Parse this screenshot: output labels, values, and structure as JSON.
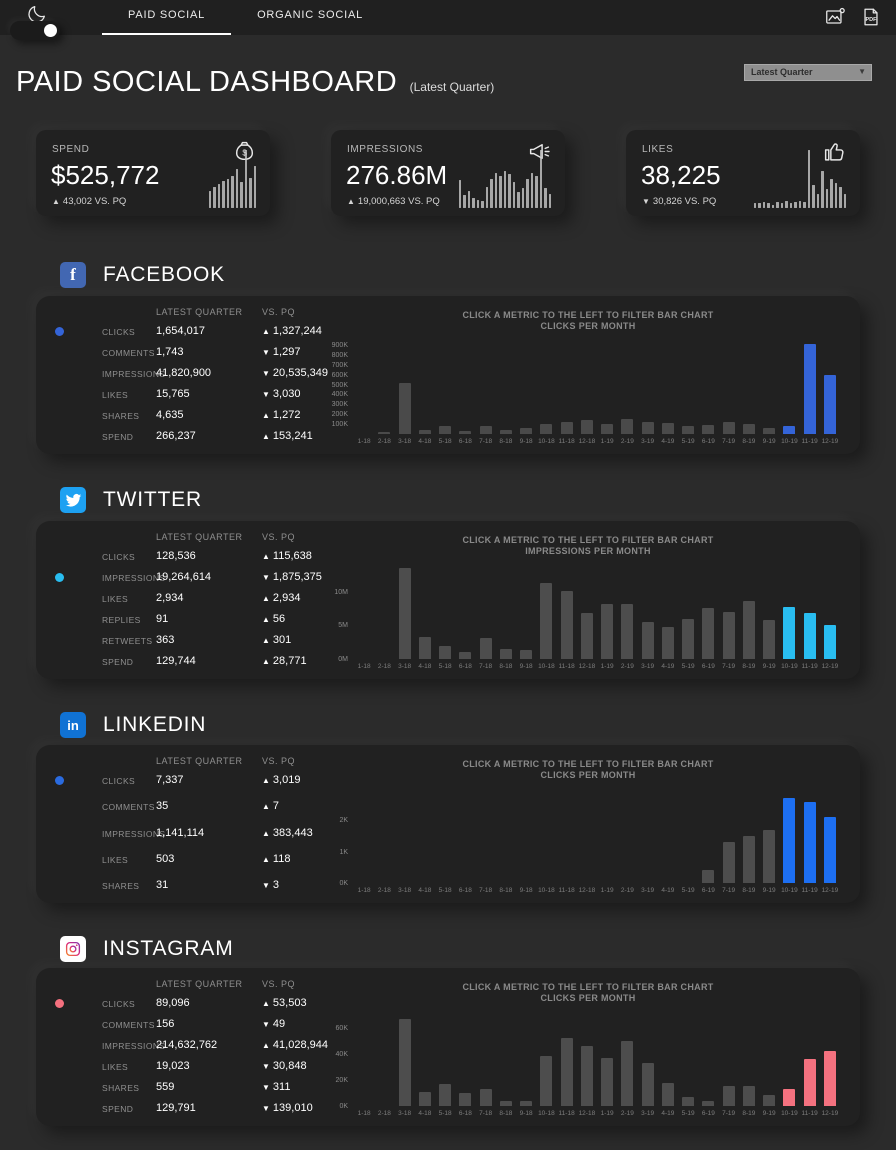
{
  "glyphs": {
    "up": "▲",
    "down": "▼",
    "caret": "▼"
  },
  "topbar": {
    "tabs": [
      {
        "label": "PAID SOCIAL",
        "active": true
      },
      {
        "label": "ORGANIC SOCIAL",
        "active": false
      }
    ]
  },
  "header": {
    "title": "PAID SOCIAL DASHBOARD",
    "subtitle": "(Latest Quarter)",
    "quarter_dropdown_value": "Latest Quarter"
  },
  "kpis": [
    {
      "label": "SPEND",
      "value": "$525,772",
      "direction": "up",
      "delta": "43,002 VS. PQ",
      "icon": "money-bag-icon",
      "spark": [
        30,
        36,
        42,
        46,
        50,
        55,
        68,
        45,
        100,
        52,
        72
      ]
    },
    {
      "label": "IMPRESSIONS",
      "value": "276.86M",
      "direction": "up",
      "delta": "19,000,663 VS. PQ",
      "icon": "megaphone-icon",
      "spark": [
        48,
        22,
        30,
        18,
        14,
        12,
        36,
        50,
        60,
        56,
        64,
        58,
        44,
        28,
        34,
        50,
        60,
        56,
        100,
        34,
        24
      ]
    },
    {
      "label": "LIKES",
      "value": "38,225",
      "direction": "down",
      "delta": "30,826 VS. PQ",
      "icon": "thumbs-up-icon",
      "spark": [
        8,
        8,
        10,
        8,
        6,
        10,
        8,
        12,
        8,
        10,
        12,
        10,
        100,
        40,
        25,
        63,
        32,
        50,
        43,
        36,
        25
      ]
    }
  ],
  "months": [
    "1-18",
    "2-18",
    "3-18",
    "4-18",
    "5-18",
    "6-18",
    "7-18",
    "8-18",
    "9-18",
    "10-18",
    "11-18",
    "12-18",
    "1-19",
    "2-19",
    "3-19",
    "4-19",
    "5-19",
    "6-19",
    "7-19",
    "8-19",
    "9-19",
    "10-19",
    "11-19",
    "12-19"
  ],
  "chart_note_line1": "CLICK A METRIC TO THE LEFT TO FILTER BAR CHART",
  "sections": [
    {
      "id": "facebook",
      "title": "FACEBOOK",
      "accent": "#3464d8",
      "icon_bg": "#4267b2",
      "icon_glyph": "f",
      "table": {
        "headers": {
          "latest_quarter": "LATEST QUARTER",
          "vs_pq": "VS. PQ"
        },
        "rows": [
          {
            "metric": "CLICKS",
            "selected": true,
            "value": "1,654,017",
            "dir": "up",
            "vs": "1,327,244"
          },
          {
            "metric": "COMMENTS",
            "value": "1,743",
            "dir": "down",
            "vs": "1,297"
          },
          {
            "metric": "IMPRESSIONS",
            "value": "41,820,900",
            "dir": "down",
            "vs": "20,535,349"
          },
          {
            "metric": "LIKES",
            "value": "15,765",
            "dir": "down",
            "vs": "3,030"
          },
          {
            "metric": "SHARES",
            "value": "4,635",
            "dir": "up",
            "vs": "1,272"
          },
          {
            "metric": "SPEND",
            "value": "266,237",
            "dir": "up",
            "vs": "153,241"
          }
        ]
      },
      "chart": {
        "type": "bar",
        "metric": "CLICKS",
        "note_suffix": "PER MONTH",
        "unit": "K",
        "ymax": 950,
        "highlight_count": 3,
        "bar_color": "#3464d8",
        "gray_color": "#4a4a4a",
        "yticks": [
          {
            "t": "900K",
            "v": 900
          },
          {
            "t": "800K",
            "v": 800
          },
          {
            "t": "700K",
            "v": 700
          },
          {
            "t": "600K",
            "v": 600
          },
          {
            "t": "500K",
            "v": 500
          },
          {
            "t": "400K",
            "v": 400
          },
          {
            "t": "300K",
            "v": 300
          },
          {
            "t": "200K",
            "v": 200
          },
          {
            "t": "100K",
            "v": 100
          }
        ],
        "values": [
          0,
          5,
          520,
          40,
          85,
          35,
          85,
          45,
          60,
          100,
          120,
          145,
          100,
          150,
          120,
          115,
          85,
          95,
          120,
          100,
          65,
          85,
          910,
          600
        ]
      }
    },
    {
      "id": "twitter",
      "title": "TWITTER",
      "accent": "#29bdf0",
      "icon_bg": "#1da1f2",
      "icon_glyph": "bird",
      "table": {
        "headers": {
          "latest_quarter": "LATEST QUARTER",
          "vs_pq": "VS. PQ"
        },
        "rows": [
          {
            "metric": "CLICKS",
            "value": "128,536",
            "dir": "up",
            "vs": "115,638"
          },
          {
            "metric": "IMPRESSIONS",
            "selected": true,
            "value": "19,264,614",
            "dir": "down",
            "vs": "1,875,375"
          },
          {
            "metric": "LIKES",
            "value": "2,934",
            "dir": "up",
            "vs": "2,934"
          },
          {
            "metric": "REPLIES",
            "value": "91",
            "dir": "up",
            "vs": "56"
          },
          {
            "metric": "RETWEETS",
            "value": "363",
            "dir": "up",
            "vs": "301"
          },
          {
            "metric": "SPEND",
            "value": "129,744",
            "dir": "up",
            "vs": "28,771"
          }
        ]
      },
      "chart": {
        "type": "bar",
        "metric": "IMPRESSIONS",
        "note_suffix": "PER MONTH",
        "unit": "M",
        "ymax": 14,
        "highlight_count": 3,
        "bar_color": "#29bdf0",
        "gray_color": "#4d4d4d",
        "yticks": [
          {
            "t": "10M",
            "v": 10
          },
          {
            "t": "5M",
            "v": 5
          },
          {
            "t": "0M",
            "v": 0
          }
        ],
        "values": [
          0,
          0,
          13.5,
          3.3,
          2.0,
          1.1,
          3.1,
          1.5,
          1.3,
          11.3,
          10.2,
          6.8,
          8.2,
          8.2,
          5.5,
          4.7,
          5.9,
          7.6,
          7.0,
          8.7,
          5.8,
          7.7,
          6.8,
          5.0
        ]
      }
    },
    {
      "id": "linkedin",
      "title": "LINKEDIN",
      "accent": "#2a6be0",
      "icon_bg": "#1072d4",
      "icon_glyph": "in",
      "table": {
        "headers": {
          "latest_quarter": "LATEST QUARTER",
          "vs_pq": "VS. PQ"
        },
        "rows": [
          {
            "metric": "CLICKS",
            "selected": true,
            "value": "7,337",
            "dir": "up",
            "vs": "3,019"
          },
          {
            "metric": "COMMENTS",
            "value": "35",
            "dir": "up",
            "vs": "7"
          },
          {
            "metric": "IMPRESSIONS",
            "value": "1,141,114",
            "dir": "up",
            "vs": "383,443"
          },
          {
            "metric": "LIKES",
            "value": "503",
            "dir": "up",
            "vs": "118"
          },
          {
            "metric": "SHARES",
            "value": "31",
            "dir": "down",
            "vs": "3"
          }
        ]
      },
      "chart": {
        "type": "bar",
        "metric": "CLICKS",
        "note_suffix": "PER MONTH",
        "unit": "K",
        "ymax": 3,
        "highlight_count": 3,
        "bar_color": "#1d6ff2",
        "gray_color": "#4d4d4d",
        "yticks": [
          {
            "t": "2K",
            "v": 2
          },
          {
            "t": "1K",
            "v": 1
          },
          {
            "t": "0K",
            "v": 0
          }
        ],
        "values": [
          0,
          0,
          0,
          0,
          0,
          0,
          0,
          0,
          0,
          0,
          0,
          0,
          0,
          0,
          0,
          0,
          0,
          0.4,
          1.3,
          1.5,
          1.7,
          2.7,
          2.6,
          2.1
        ]
      }
    },
    {
      "id": "instagram",
      "title": "INSTAGRAM",
      "accent": "#f4707e",
      "icon_bg": "#ffffff",
      "icon_glyph": "camera",
      "table": {
        "headers": {
          "latest_quarter": "LATEST QUARTER",
          "vs_pq": "VS. PQ"
        },
        "rows": [
          {
            "metric": "CLICKS",
            "selected": true,
            "value": "89,096",
            "dir": "up",
            "vs": "53,503"
          },
          {
            "metric": "COMMENTS",
            "value": "156",
            "dir": "down",
            "vs": "49"
          },
          {
            "metric": "IMPRESSIONS",
            "value": "214,632,762",
            "dir": "up",
            "vs": "41,028,944"
          },
          {
            "metric": "LIKES",
            "value": "19,023",
            "dir": "down",
            "vs": "30,848"
          },
          {
            "metric": "SHARES",
            "value": "559",
            "dir": "down",
            "vs": "311"
          },
          {
            "metric": "SPEND",
            "value": "129,791",
            "dir": "down",
            "vs": "139,010"
          }
        ]
      },
      "chart": {
        "type": "bar",
        "metric": "CLICKS",
        "note_suffix": "PER MONTH",
        "unit": "K",
        "ymax": 72,
        "highlight_count": 3,
        "bar_color": "#f4717f",
        "gray_color": "#4d4d4d",
        "yticks": [
          {
            "t": "60K",
            "v": 60
          },
          {
            "t": "40K",
            "v": 40
          },
          {
            "t": "20K",
            "v": 20
          },
          {
            "t": "0K",
            "v": 0
          }
        ],
        "values": [
          0,
          0,
          67,
          11,
          17,
          10,
          13,
          4,
          3.5,
          38,
          52,
          46,
          37,
          50,
          33,
          18,
          7,
          4,
          15,
          15,
          8.5,
          13,
          36,
          42
        ]
      }
    }
  ]
}
